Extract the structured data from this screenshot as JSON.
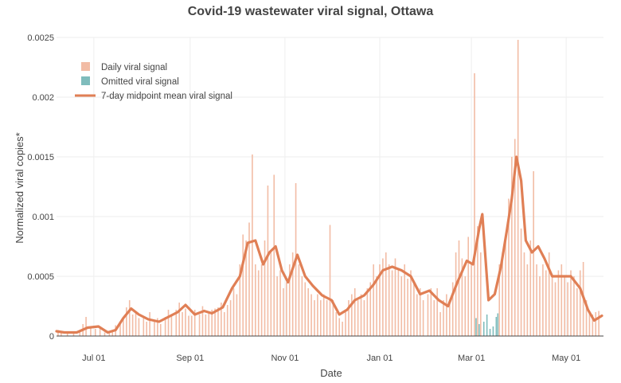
{
  "chart_data": {
    "type": "bar",
    "title": "Covid-19 wastewater viral signal, Ottawa",
    "xlabel": "Date",
    "ylabel": "Normalized viral copies*",
    "x_range": [
      "2021-06-07",
      "2022-05-25"
    ],
    "ylim": [
      0,
      0.0025
    ],
    "y_ticks": [
      0,
      0.0005,
      0.001,
      0.0015,
      0.002,
      0.0025
    ],
    "y_tick_labels": [
      "0",
      "0.0005",
      "0.001",
      "0.0015",
      "0.002",
      "0.0025"
    ],
    "x_ticks": [
      {
        "date": "2021-07-01",
        "label": "Jul 01"
      },
      {
        "date": "2021-09-01",
        "label": "Sep 01"
      },
      {
        "date": "2021-11-01",
        "label": "Nov 01"
      },
      {
        "date": "2022-01-01",
        "label": "Jan 01"
      },
      {
        "date": "2022-03-01",
        "label": "Mar 01"
      },
      {
        "date": "2022-05-01",
        "label": "May 01"
      }
    ],
    "grid": true,
    "legend_position": "top-left",
    "colors": {
      "daily": "#f2bca5",
      "omitted": "#7fbcbc",
      "mean": "#e07f55",
      "grid": "#eeeeee",
      "axis": "#444444"
    },
    "series": [
      {
        "name": "Daily viral signal",
        "kind": "bar",
        "data": [
          [
            "2021-06-08",
            5e-05
          ],
          [
            "2021-06-10",
            4e-05
          ],
          [
            "2021-06-14",
            3e-05
          ],
          [
            "2021-06-18",
            4e-05
          ],
          [
            "2021-06-22",
            5e-05
          ],
          [
            "2021-06-24",
            0.0001
          ],
          [
            "2021-06-26",
            0.00016
          ],
          [
            "2021-06-29",
            8e-05
          ],
          [
            "2021-07-02",
            6e-05
          ],
          [
            "2021-07-05",
            7e-05
          ],
          [
            "2021-07-08",
            3e-05
          ],
          [
            "2021-07-11",
            4e-05
          ],
          [
            "2021-07-13",
            5e-05
          ],
          [
            "2021-07-15",
            9e-05
          ],
          [
            "2021-07-18",
            0.00012
          ],
          [
            "2021-07-20",
            0.00016
          ],
          [
            "2021-07-22",
            0.00024
          ],
          [
            "2021-07-24",
            0.0003
          ],
          [
            "2021-07-26",
            0.00018
          ],
          [
            "2021-07-28",
            0.0002
          ],
          [
            "2021-07-30",
            0.00015
          ],
          [
            "2021-08-02",
            0.00015
          ],
          [
            "2021-08-04",
            0.00012
          ],
          [
            "2021-08-06",
            0.0002
          ],
          [
            "2021-08-09",
            0.00012
          ],
          [
            "2021-08-11",
            0.00015
          ],
          [
            "2021-08-13",
            0.0001
          ],
          [
            "2021-08-16",
            0.00016
          ],
          [
            "2021-08-18",
            0.00022
          ],
          [
            "2021-08-20",
            0.00018
          ],
          [
            "2021-08-23",
            0.00022
          ],
          [
            "2021-08-25",
            0.00028
          ],
          [
            "2021-08-27",
            0.0002
          ],
          [
            "2021-08-29",
            0.00023
          ],
          [
            "2021-08-31",
            0.00017
          ],
          [
            "2021-09-02",
            0.00017
          ],
          [
            "2021-09-04",
            0.00022
          ],
          [
            "2021-09-07",
            0.00018
          ],
          [
            "2021-09-09",
            0.00025
          ],
          [
            "2021-09-11",
            0.00018
          ],
          [
            "2021-09-13",
            0.0002
          ],
          [
            "2021-09-15",
            0.00022
          ],
          [
            "2021-09-17",
            0.00023
          ],
          [
            "2021-09-19",
            0.00024
          ],
          [
            "2021-09-21",
            0.00028
          ],
          [
            "2021-09-23",
            0.0002
          ],
          [
            "2021-09-25",
            0.00026
          ],
          [
            "2021-09-27",
            0.0003
          ],
          [
            "2021-09-29",
            0.0004
          ],
          [
            "2021-10-01",
            0.00035
          ],
          [
            "2021-10-03",
            0.0006
          ],
          [
            "2021-10-05",
            0.00085
          ],
          [
            "2021-10-07",
            0.0008
          ],
          [
            "2021-10-09",
            0.00095
          ],
          [
            "2021-10-11",
            0.00152
          ],
          [
            "2021-10-13",
            0.0006
          ],
          [
            "2021-10-15",
            0.00055
          ],
          [
            "2021-10-17",
            0.0006
          ],
          [
            "2021-10-19",
            0.0008
          ],
          [
            "2021-10-21",
            0.00126
          ],
          [
            "2021-10-23",
            0.00072
          ],
          [
            "2021-10-25",
            0.00135
          ],
          [
            "2021-10-27",
            0.0005
          ],
          [
            "2021-10-29",
            0.00055
          ],
          [
            "2021-10-31",
            0.0004
          ],
          [
            "2021-11-02",
            0.00045
          ],
          [
            "2021-11-04",
            0.0006
          ],
          [
            "2021-11-06",
            0.0007
          ],
          [
            "2021-11-08",
            0.00128
          ],
          [
            "2021-11-10",
            0.0006
          ],
          [
            "2021-11-12",
            0.0005
          ],
          [
            "2021-11-14",
            0.00045
          ],
          [
            "2021-11-16",
            0.0004
          ],
          [
            "2021-11-18",
            0.00035
          ],
          [
            "2021-11-20",
            0.0003
          ],
          [
            "2021-11-22",
            0.00035
          ],
          [
            "2021-11-24",
            0.0003
          ],
          [
            "2021-11-26",
            0.00035
          ],
          [
            "2021-11-28",
            0.0003
          ],
          [
            "2021-11-30",
            0.00093
          ],
          [
            "2021-12-02",
            0.0003
          ],
          [
            "2021-12-04",
            0.0002
          ],
          [
            "2021-12-06",
            0.00015
          ],
          [
            "2021-12-08",
            0.00012
          ],
          [
            "2021-12-10",
            0.0002
          ],
          [
            "2021-12-12",
            0.0003
          ],
          [
            "2021-12-14",
            0.00035
          ],
          [
            "2021-12-16",
            0.0004
          ],
          [
            "2021-12-18",
            0.0003
          ],
          [
            "2021-12-20",
            0.00035
          ],
          [
            "2021-12-22",
            0.0003
          ],
          [
            "2021-12-24",
            0.0004
          ],
          [
            "2021-12-26",
            0.00045
          ],
          [
            "2021-12-28",
            0.0006
          ],
          [
            "2021-12-30",
            0.0005
          ],
          [
            "2022-01-01",
            0.0006
          ],
          [
            "2022-01-03",
            0.00065
          ],
          [
            "2022-01-05",
            0.0007
          ],
          [
            "2022-01-07",
            0.0006
          ],
          [
            "2022-01-09",
            0.00055
          ],
          [
            "2022-01-11",
            0.00065
          ],
          [
            "2022-01-13",
            0.00055
          ],
          [
            "2022-01-15",
            0.0005
          ],
          [
            "2022-01-17",
            0.0006
          ],
          [
            "2022-01-19",
            0.00048
          ],
          [
            "2022-01-21",
            0.00055
          ],
          [
            "2022-01-23",
            0.00045
          ],
          [
            "2022-01-25",
            0.00035
          ],
          [
            "2022-01-27",
            0.0004
          ],
          [
            "2022-01-29",
            0.0003
          ],
          [
            "2022-02-01",
            0.00035
          ],
          [
            "2022-02-03",
            0.0004
          ],
          [
            "2022-02-05",
            0.0003
          ],
          [
            "2022-02-07",
            0.0004
          ],
          [
            "2022-02-09",
            0.0002
          ],
          [
            "2022-02-11",
            0.0003
          ],
          [
            "2022-02-13",
            0.00035
          ],
          [
            "2022-02-15",
            0.0003
          ],
          [
            "2022-02-17",
            0.00045
          ],
          [
            "2022-02-19",
            0.0007
          ],
          [
            "2022-02-21",
            0.0008
          ],
          [
            "2022-02-23",
            0.00065
          ],
          [
            "2022-02-25",
            0.0005
          ],
          [
            "2022-02-27",
            0.00083
          ],
          [
            "2022-03-01",
            0.0006
          ],
          [
            "2022-03-03",
            0.0022
          ],
          [
            "2022-03-05",
            0.00092
          ],
          [
            "2022-03-07",
            0.0007
          ],
          [
            "2022-03-19",
            0.0006
          ],
          [
            "2022-03-21",
            0.0007
          ],
          [
            "2022-03-23",
            0.0008
          ],
          [
            "2022-03-25",
            0.00115
          ],
          [
            "2022-03-27",
            0.0015
          ],
          [
            "2022-03-29",
            0.00165
          ],
          [
            "2022-03-31",
            0.00248
          ],
          [
            "2022-04-02",
            0.0009
          ],
          [
            "2022-04-04",
            0.0007
          ],
          [
            "2022-04-06",
            0.0006
          ],
          [
            "2022-04-08",
            0.0008
          ],
          [
            "2022-04-10",
            0.00138
          ],
          [
            "2022-04-12",
            0.0006
          ],
          [
            "2022-04-14",
            0.0005
          ],
          [
            "2022-04-16",
            0.0006
          ],
          [
            "2022-04-18",
            0.00055
          ],
          [
            "2022-04-20",
            0.0007
          ],
          [
            "2022-04-22",
            0.0005
          ],
          [
            "2022-04-24",
            0.00045
          ],
          [
            "2022-04-26",
            0.00055
          ],
          [
            "2022-04-28",
            0.0006
          ],
          [
            "2022-04-30",
            0.0005
          ],
          [
            "2022-05-02",
            0.00045
          ],
          [
            "2022-05-04",
            0.00055
          ],
          [
            "2022-05-06",
            0.0005
          ],
          [
            "2022-05-08",
            0.0004
          ],
          [
            "2022-05-10",
            0.00055
          ],
          [
            "2022-05-12",
            0.00062
          ],
          [
            "2022-05-14",
            0.0003
          ],
          [
            "2022-05-16",
            0.0002
          ],
          [
            "2022-05-18",
            0.00018
          ],
          [
            "2022-05-20",
            0.0002
          ],
          [
            "2022-05-22",
            0.00021
          ]
        ]
      },
      {
        "name": "Omitted viral signal",
        "kind": "bar",
        "data": [
          [
            "2022-03-04",
            0.00015
          ],
          [
            "2022-03-06",
            0.0001
          ],
          [
            "2022-03-09",
            0.00012
          ],
          [
            "2022-03-11",
            0.00018
          ],
          [
            "2022-03-13",
            6e-05
          ],
          [
            "2022-03-15",
            8e-05
          ],
          [
            "2022-03-17",
            0.00016
          ],
          [
            "2022-03-18",
            0.00019
          ]
        ]
      },
      {
        "name": "7-day midpoint mean viral signal",
        "kind": "line",
        "data": [
          [
            "2021-06-07",
            4e-05
          ],
          [
            "2021-06-12",
            3e-05
          ],
          [
            "2021-06-20",
            3e-05
          ],
          [
            "2021-06-27",
            7e-05
          ],
          [
            "2021-07-04",
            8e-05
          ],
          [
            "2021-07-10",
            3e-05
          ],
          [
            "2021-07-15",
            5e-05
          ],
          [
            "2021-07-20",
            0.00015
          ],
          [
            "2021-07-25",
            0.00023
          ],
          [
            "2021-07-30",
            0.00018
          ],
          [
            "2021-08-05",
            0.00014
          ],
          [
            "2021-08-12",
            0.00012
          ],
          [
            "2021-08-18",
            0.00016
          ],
          [
            "2021-08-24",
            0.0002
          ],
          [
            "2021-08-29",
            0.00026
          ],
          [
            "2021-09-04",
            0.00018
          ],
          [
            "2021-09-10",
            0.00021
          ],
          [
            "2021-09-15",
            0.00019
          ],
          [
            "2021-09-22",
            0.00024
          ],
          [
            "2021-09-28",
            0.0004
          ],
          [
            "2021-10-03",
            0.0005
          ],
          [
            "2021-10-08",
            0.00078
          ],
          [
            "2021-10-13",
            0.0008
          ],
          [
            "2021-10-18",
            0.0006
          ],
          [
            "2021-10-22",
            0.0007
          ],
          [
            "2021-10-26",
            0.00075
          ],
          [
            "2021-10-30",
            0.00055
          ],
          [
            "2021-11-03",
            0.00045
          ],
          [
            "2021-11-09",
            0.00068
          ],
          [
            "2021-11-14",
            0.0005
          ],
          [
            "2021-11-19",
            0.00042
          ],
          [
            "2021-11-25",
            0.00034
          ],
          [
            "2021-12-01",
            0.0003
          ],
          [
            "2021-12-06",
            0.00018
          ],
          [
            "2021-12-11",
            0.00022
          ],
          [
            "2021-12-16",
            0.0003
          ],
          [
            "2021-12-22",
            0.00034
          ],
          [
            "2021-12-28",
            0.00043
          ],
          [
            "2022-01-03",
            0.00055
          ],
          [
            "2022-01-09",
            0.00058
          ],
          [
            "2022-01-15",
            0.00055
          ],
          [
            "2022-01-21",
            0.0005
          ],
          [
            "2022-01-27",
            0.00035
          ],
          [
            "2022-02-02",
            0.00038
          ],
          [
            "2022-02-08",
            0.0003
          ],
          [
            "2022-02-14",
            0.00025
          ],
          [
            "2022-02-20",
            0.00045
          ],
          [
            "2022-02-26",
            0.00063
          ],
          [
            "2022-03-02",
            0.0006
          ],
          [
            "2022-03-06",
            0.0009
          ],
          [
            "2022-03-08",
            0.00102
          ],
          [
            "2022-03-12",
            0.0003
          ],
          [
            "2022-03-16",
            0.00035
          ],
          [
            "2022-03-20",
            0.00058
          ],
          [
            "2022-03-24",
            0.0009
          ],
          [
            "2022-03-27",
            0.00115
          ],
          [
            "2022-03-30",
            0.0015
          ],
          [
            "2022-04-02",
            0.0013
          ],
          [
            "2022-04-05",
            0.0008
          ],
          [
            "2022-04-09",
            0.0007
          ],
          [
            "2022-04-13",
            0.00075
          ],
          [
            "2022-04-17",
            0.00065
          ],
          [
            "2022-04-22",
            0.0005
          ],
          [
            "2022-04-28",
            0.0005
          ],
          [
            "2022-05-04",
            0.0005
          ],
          [
            "2022-05-10",
            0.0004
          ],
          [
            "2022-05-15",
            0.00022
          ],
          [
            "2022-05-19",
            0.00013
          ],
          [
            "2022-05-24",
            0.00017
          ]
        ]
      }
    ]
  }
}
